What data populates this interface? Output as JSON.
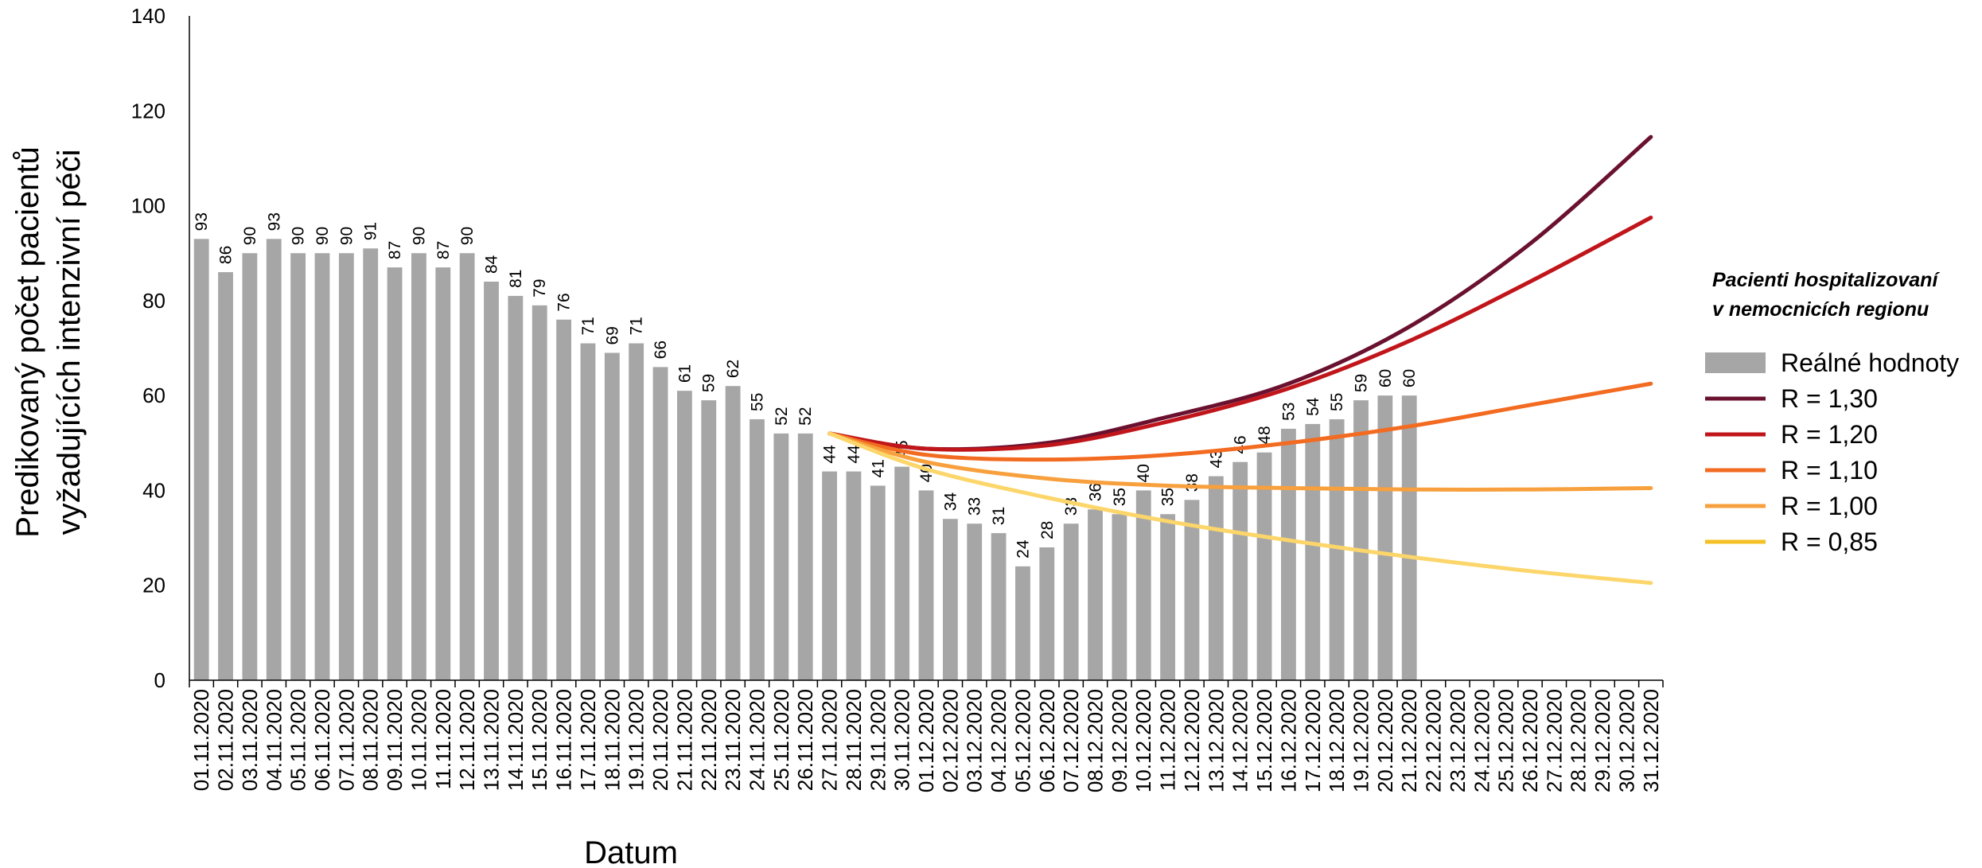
{
  "chart_data": {
    "type": "bar",
    "title": "",
    "xlabel": "Datum",
    "ylabel_line1": "Predikovaný počet pacientů",
    "ylabel_line2": "vyžadujících intenzivní péči",
    "ylim": [
      0,
      140
    ],
    "yticks": [
      "0",
      "20",
      "40",
      "60",
      "80",
      "100",
      "120",
      "140"
    ],
    "grid": false,
    "legend_position": "right",
    "legend_title_line1": "Pacienti hospitalizovaní",
    "legend_title_line2": "v nemocnicích regionu",
    "categories": [
      "01.11.2020",
      "02.11.2020",
      "03.11.2020",
      "04.11.2020",
      "05.11.2020",
      "06.11.2020",
      "07.11.2020",
      "08.11.2020",
      "09.11.2020",
      "10.11.2020",
      "11.11.2020",
      "12.11.2020",
      "13.11.2020",
      "14.11.2020",
      "15.11.2020",
      "16.11.2020",
      "17.11.2020",
      "18.11.2020",
      "19.11.2020",
      "20.11.2020",
      "21.11.2020",
      "22.11.2020",
      "23.11.2020",
      "24.11.2020",
      "25.11.2020",
      "26.11.2020",
      "27.11.2020",
      "28.11.2020",
      "29.11.2020",
      "30.11.2020",
      "01.12.2020",
      "02.12.2020",
      "03.12.2020",
      "04.12.2020",
      "05.12.2020",
      "06.12.2020",
      "07.12.2020",
      "08.12.2020",
      "09.12.2020",
      "10.12.2020",
      "11.12.2020",
      "12.12.2020",
      "13.12.2020",
      "14.12.2020",
      "15.12.2020",
      "16.12.2020",
      "17.12.2020",
      "18.12.2020",
      "19.12.2020",
      "20.12.2020",
      "21.12.2020",
      "22.12.2020",
      "23.12.2020",
      "24.12.2020",
      "25.12.2020",
      "26.12.2020",
      "27.12.2020",
      "28.12.2020",
      "29.12.2020",
      "30.12.2020",
      "31.12.2020"
    ],
    "bars": {
      "name": "Reálné hodnoty",
      "color": "#a6a6a6",
      "values": [
        93,
        86,
        90,
        93,
        90,
        90,
        90,
        91,
        87,
        90,
        87,
        90,
        84,
        81,
        79,
        76,
        71,
        69,
        71,
        66,
        61,
        59,
        62,
        55,
        52,
        52,
        44,
        44,
        41,
        45,
        40,
        34,
        33,
        31,
        24,
        28,
        33,
        36,
        35,
        40,
        35,
        38,
        43,
        46,
        48,
        53,
        54,
        55,
        59,
        60,
        60
      ]
    },
    "series": [
      {
        "name": "R = 1,30",
        "color": "#6b1130",
        "x": [
          "27.11.2020",
          "01.12.2020",
          "06.12.2020",
          "11.12.2020",
          "16.12.2020",
          "21.12.2020",
          "26.12.2020",
          "31.12.2020"
        ],
        "values": [
          52,
          48.8,
          50,
          55.5,
          62.5,
          74.5,
          92,
          114.5
        ]
      },
      {
        "name": "R = 1,20",
        "color": "#c0161b",
        "x": [
          "27.11.2020",
          "01.12.2020",
          "06.12.2020",
          "11.12.2020",
          "16.12.2020",
          "21.12.2020",
          "26.12.2020",
          "31.12.2020"
        ],
        "values": [
          52,
          48.8,
          49.5,
          54.5,
          61.5,
          71.5,
          84,
          97.5
        ]
      },
      {
        "name": "R = 1,10",
        "color": "#f26b21",
        "x": [
          "27.11.2020",
          "01.12.2020",
          "06.12.2020",
          "11.12.2020",
          "16.12.2020",
          "21.12.2020",
          "26.12.2020",
          "31.12.2020"
        ],
        "values": [
          52,
          47.5,
          46.5,
          47.5,
          50,
          53.5,
          58,
          62.5
        ]
      },
      {
        "name": "R = 1,00",
        "color": "#f7a03d",
        "x": [
          "27.11.2020",
          "01.12.2020",
          "06.12.2020",
          "11.12.2020",
          "16.12.2020",
          "21.12.2020",
          "26.12.2020",
          "31.12.2020"
        ],
        "values": [
          52,
          46,
          42.5,
          41,
          40.5,
          40.2,
          40.2,
          40.5
        ]
      },
      {
        "name": "R = 0,85",
        "color": "#fcd66a",
        "legend_color": "#f5c024",
        "x": [
          "27.11.2020",
          "01.12.2020",
          "06.12.2020",
          "11.12.2020",
          "16.12.2020",
          "21.12.2020",
          "26.12.2020",
          "31.12.2020"
        ],
        "values": [
          52,
          44.5,
          38.5,
          33.5,
          29.5,
          26,
          23,
          20.5
        ]
      }
    ]
  }
}
